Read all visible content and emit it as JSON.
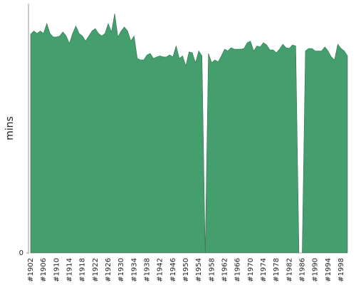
{
  "chart_data": {
    "type": "area",
    "y_label": "mins",
    "categories": [
      "#1902",
      null,
      null,
      null,
      "#1906",
      null,
      null,
      null,
      "#1910",
      null,
      null,
      null,
      "#1914",
      null,
      null,
      null,
      "#1918",
      null,
      null,
      null,
      "#1922",
      null,
      null,
      null,
      "#1926",
      null,
      null,
      null,
      "#1930",
      null,
      null,
      null,
      "#1934",
      null,
      null,
      null,
      "#1938",
      null,
      null,
      null,
      "#1942",
      null,
      null,
      null,
      "#1946",
      null,
      null,
      null,
      "#1950",
      null,
      null,
      null,
      "#1954",
      null,
      null,
      null,
      "#1958",
      null,
      null,
      null,
      "#1962",
      null,
      null,
      null,
      "#1966",
      null,
      null,
      null,
      "#1970",
      null,
      null,
      null,
      "#1974",
      null,
      null,
      null,
      "#1978",
      null,
      null,
      null,
      "#1982",
      null,
      null,
      null,
      "#1986",
      null,
      null,
      null,
      "#1990",
      null,
      null,
      null,
      "#1994",
      null,
      null,
      null,
      "#1998",
      null,
      null
    ],
    "values": [
      87.7,
      89,
      88,
      89,
      88,
      92,
      88,
      86.6,
      86.6,
      87,
      88.6,
      87,
      84,
      88,
      91,
      88,
      87,
      85,
      87,
      89,
      90,
      88,
      87,
      88,
      92,
      88.6,
      96,
      86.6,
      89,
      90.6,
      89,
      85,
      87,
      78,
      77.4,
      77.4,
      79.4,
      80,
      78,
      78.6,
      79,
      78.6,
      78.6,
      79.4,
      78.6,
      83,
      78,
      79,
      75,
      80.6,
      80.3,
      76.3,
      81,
      79,
      0,
      80,
      76.3,
      77.4,
      76.6,
      79,
      81.7,
      81,
      82.3,
      81.7,
      81.7,
      81.7,
      82,
      84.3,
      84.9,
      81,
      83,
      82.6,
      84.3,
      83.4,
      81.4,
      81.4,
      80.3,
      81.7,
      83.7,
      82.3,
      82,
      83.4,
      83,
      0,
      0,
      81,
      82,
      82,
      81,
      81,
      81,
      82.6,
      81,
      78.6,
      77.4,
      83.7,
      82,
      81,
      79
    ],
    "color": "#459e6d",
    "ylim": [
      0,
      100
    ],
    "yticks": [
      0
    ]
  }
}
